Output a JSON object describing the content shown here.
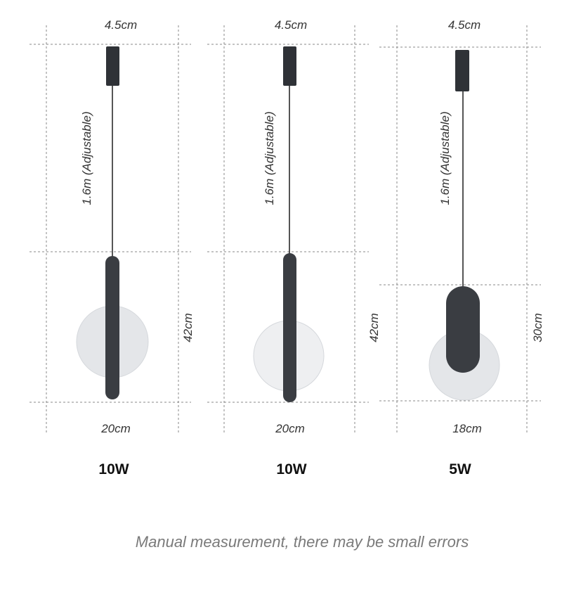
{
  "lamps": [
    {
      "top_width": "4.5cm",
      "cable": "1.6m (Adjustable)",
      "height": "42cm",
      "width": "20cm",
      "power": "10W"
    },
    {
      "top_width": "4.5cm",
      "cable": "1.6m (Adjustable)",
      "height": "42cm",
      "width": "20cm",
      "power": "10W"
    },
    {
      "top_width": "4.5cm",
      "cable": "1.6m (Adjustable)",
      "height": "30cm",
      "width": "18cm",
      "power": "5W"
    }
  ],
  "note": "Manual measurement, there may be small errors",
  "colors": {
    "body": "#3a3d42",
    "disc": "#e4e6e9",
    "guide": "#8a8a8a"
  }
}
